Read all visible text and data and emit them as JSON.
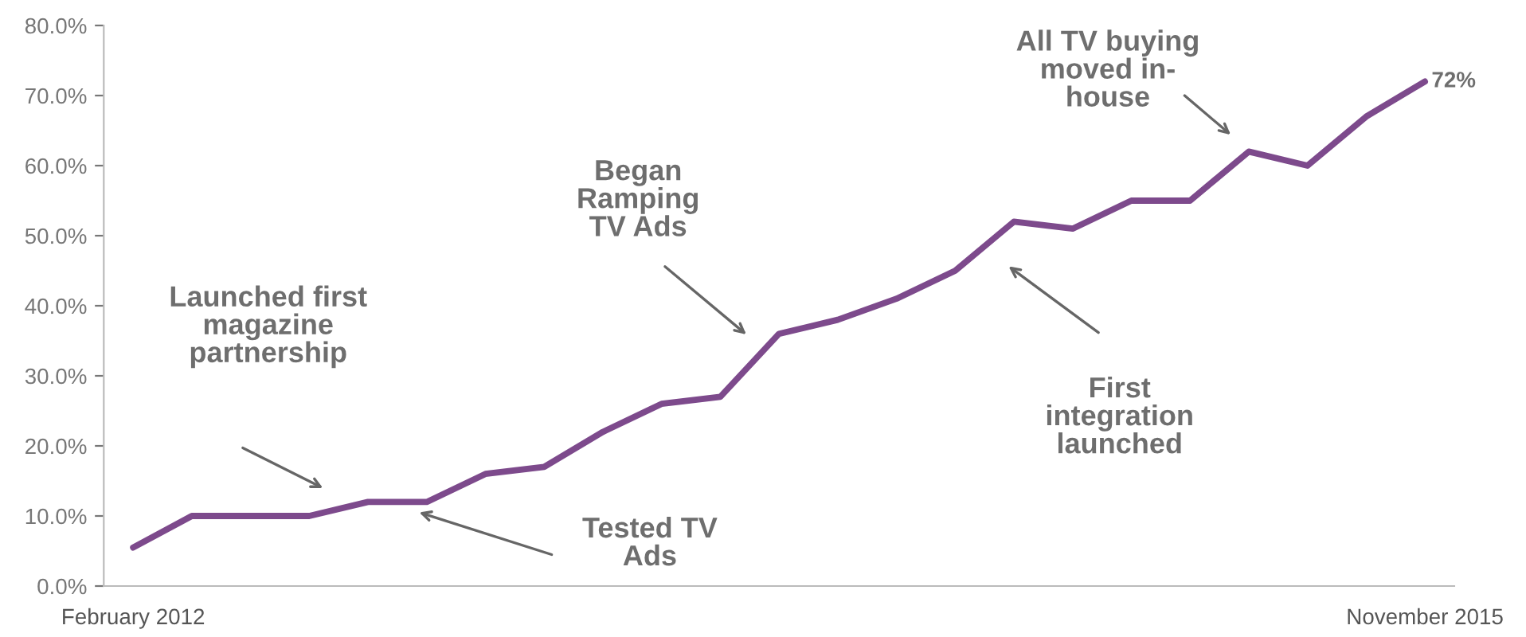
{
  "chart_data": {
    "type": "line",
    "categories": [
      "February 2012",
      null,
      null,
      null,
      null,
      null,
      null,
      null,
      null,
      null,
      null,
      null,
      null,
      null,
      null,
      null,
      null,
      null,
      null,
      null,
      null,
      null,
      "November 2015"
    ],
    "series": [
      {
        "color": "#7d4a8c",
        "values": [
          5.5,
          10,
          10,
          10,
          12,
          12,
          16,
          17,
          22,
          26,
          27,
          36,
          38,
          41,
          45,
          52,
          51,
          55,
          55,
          62,
          60,
          67,
          72
        ],
        "value_labels": [
          null,
          null,
          null,
          null,
          null,
          null,
          null,
          null,
          null,
          null,
          null,
          null,
          null,
          null,
          null,
          null,
          null,
          null,
          null,
          null,
          null,
          null,
          "72%"
        ]
      }
    ],
    "ylim": [
      0,
      80
    ],
    "yticks": [
      {
        "value": 0,
        "label": "0.0%"
      },
      {
        "value": 10,
        "label": "10.0%"
      },
      {
        "value": 20,
        "label": "20.0%"
      },
      {
        "value": 30,
        "label": "30.0%"
      },
      {
        "value": 40,
        "label": "40.0%"
      },
      {
        "value": 50,
        "label": "50.0%"
      },
      {
        "value": 60,
        "label": "60.0%"
      },
      {
        "value": 70,
        "label": "70.0%"
      },
      {
        "value": 80,
        "label": "80.0%"
      }
    ],
    "grid": false,
    "legend": false,
    "marker": "none",
    "line_style": "solid",
    "annotations": [
      "Launched first\nmagazine\npartnership",
      "Began\nRamping\nTV Ads",
      "Tested TV\nAds",
      "All TV buying\nmoved in-\nhouse",
      "First\nintegration\nlaunched"
    ]
  }
}
